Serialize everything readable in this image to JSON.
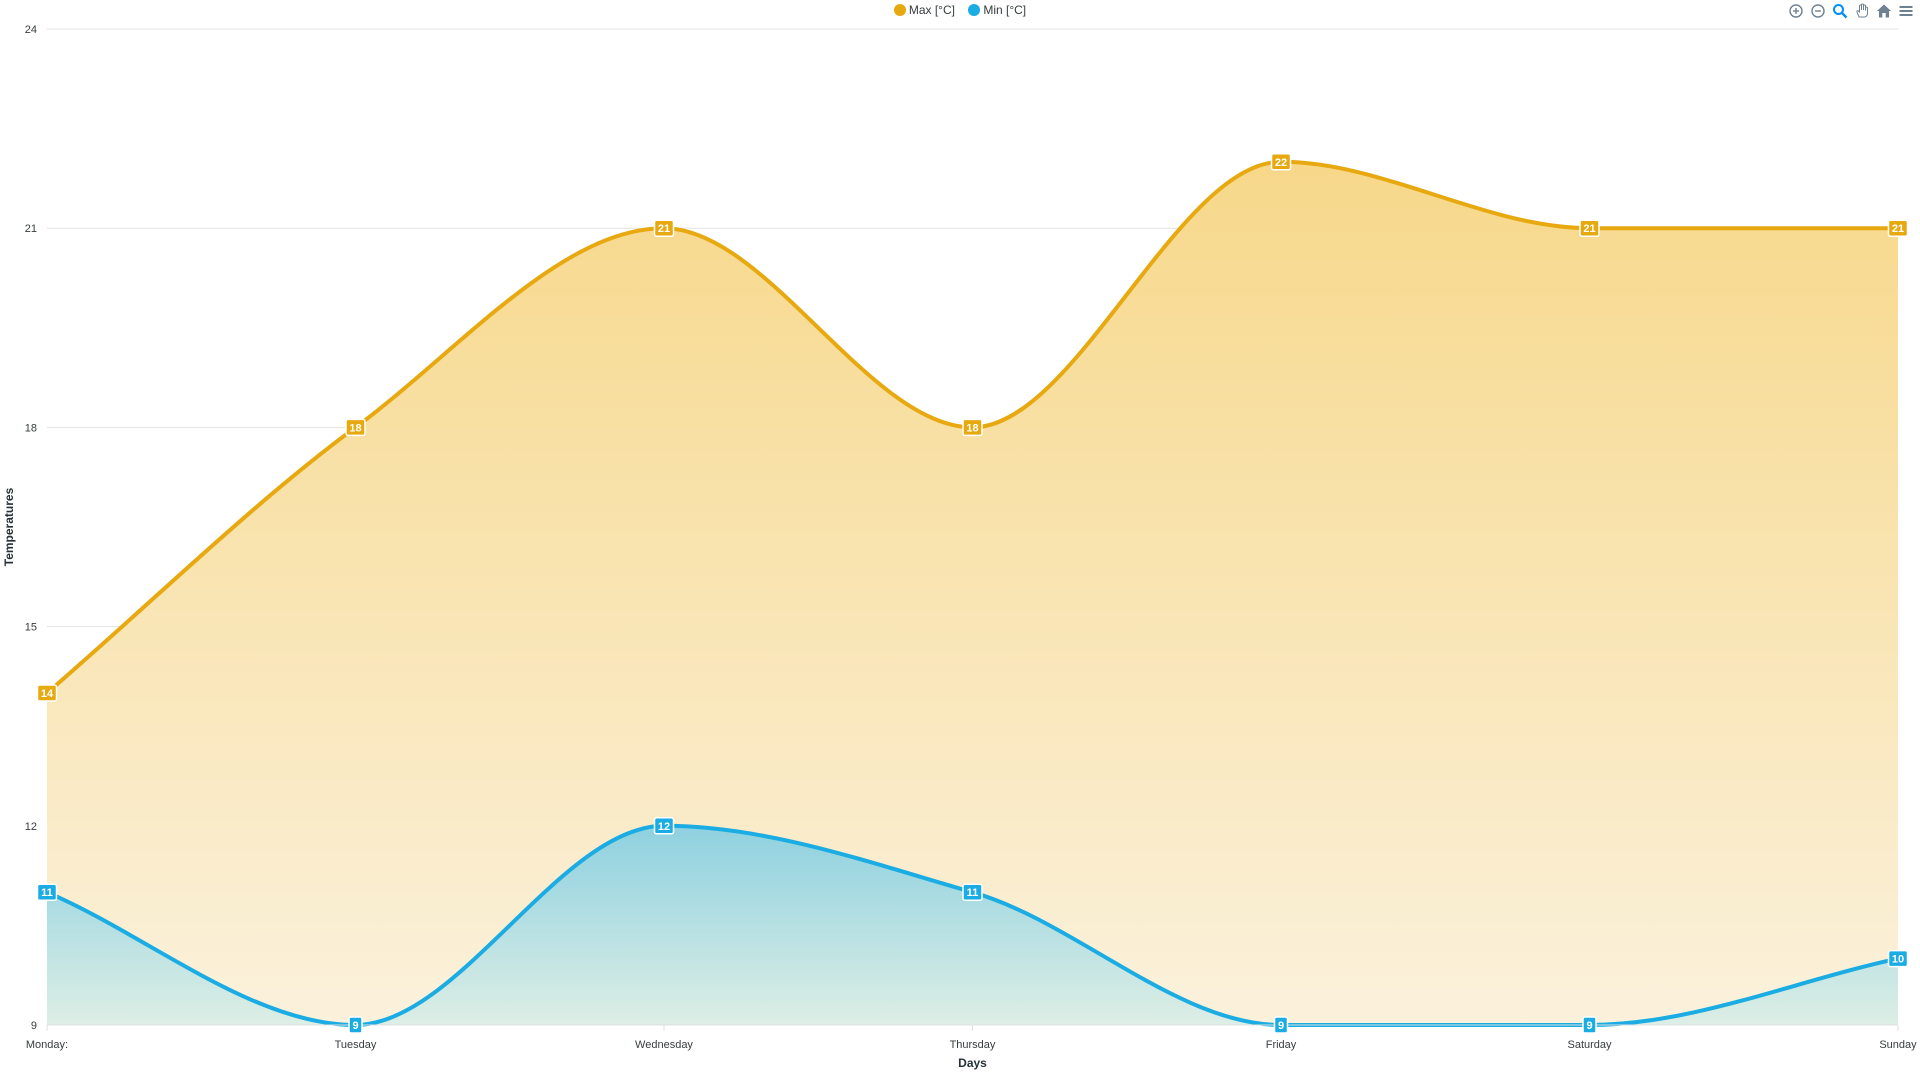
{
  "chart_data": {
    "type": "area",
    "categories": [
      "Monday:",
      "Tuesday",
      "Wednesday",
      "Thursday",
      "Friday",
      "Saturday",
      "Sunday"
    ],
    "series": [
      {
        "name": "Max [°C]",
        "color": "#E8A910",
        "values": [
          14,
          18,
          21,
          18,
          22,
          21,
          21
        ]
      },
      {
        "name": "Min [°C]",
        "color": "#1AACE3",
        "values": [
          11,
          9,
          12,
          11,
          9,
          9,
          10
        ]
      }
    ],
    "title": "",
    "xlabel": "Days",
    "ylabel": "Temperatures",
    "ylim": [
      9,
      24
    ],
    "yticks": [
      9,
      12,
      15,
      18,
      21,
      24
    ],
    "grid": true,
    "legend_position": "top-center",
    "data_labels": true,
    "curve": "smooth"
  },
  "toolbar": {
    "icons": [
      "zoom-in-icon",
      "zoom-out-icon",
      "selection-zoom-icon",
      "pan-icon",
      "home-icon",
      "menu-icon"
    ]
  }
}
